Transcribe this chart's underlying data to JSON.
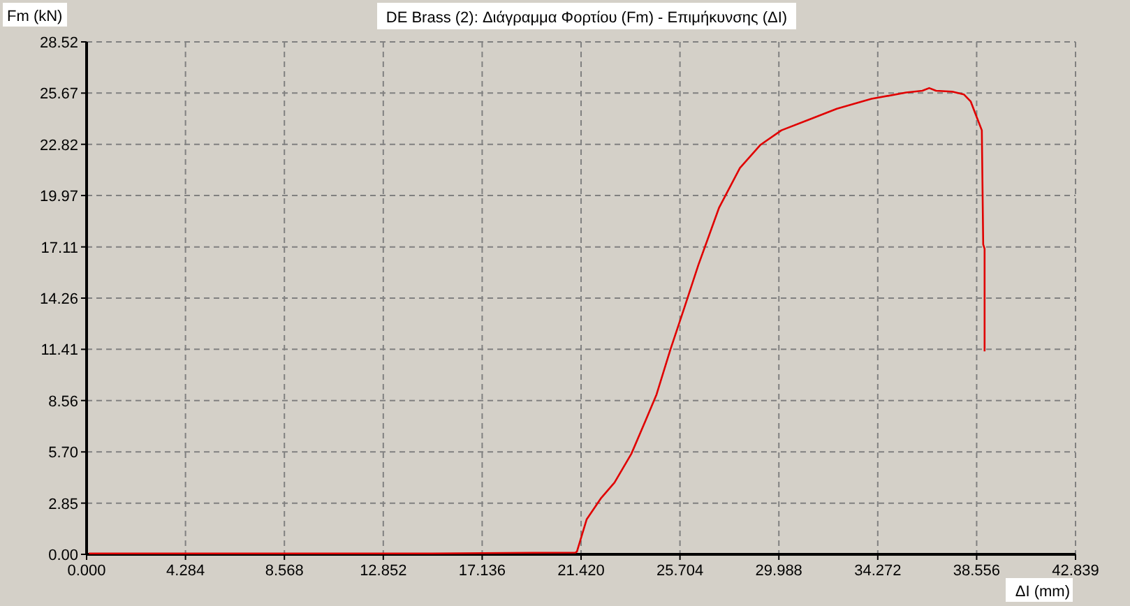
{
  "chart_data": {
    "type": "line",
    "title": "DE Brass (2): Διάγραμμα Φορτίου (Fm) - Επιμήκυνσης (ΔΙ)",
    "xlabel": "ΔI (mm)",
    "ylabel": "Fm (kN)",
    "xlim": [
      0,
      42.839
    ],
    "ylim": [
      0,
      28.52
    ],
    "xticks": [
      {
        "value": 0,
        "label": "0.000"
      },
      4.284,
      8.568,
      12.852,
      17.136,
      {
        "value": 21.42,
        "label": "21.420"
      },
      25.704,
      29.988,
      34.272,
      38.556,
      42.839
    ],
    "yticks": [
      {
        "value": 0,
        "label": "0.00"
      },
      2.85,
      {
        "value": 5.7,
        "label": "5.70"
      },
      8.56,
      11.41,
      14.26,
      17.11,
      19.97,
      22.82,
      25.67,
      28.52
    ],
    "grid": true,
    "line_style": "solid",
    "marker": "none",
    "series": [
      {
        "color": "#e00000",
        "x": [
          0.1,
          5,
          10,
          15,
          21.18,
          21.24,
          21.66,
          22.27,
          22.87,
          23.6,
          24.2,
          24.69,
          25.29,
          25.9,
          26.5,
          27.4,
          28.3,
          29.2,
          30.1,
          31.3,
          32.5,
          34,
          35.5,
          36.2,
          36.5,
          36.8,
          37.5,
          38,
          38.3,
          38.6,
          38.78,
          38.84,
          38.9,
          38.9
        ],
        "values": [
          0.05,
          0.05,
          0.05,
          0.05,
          0.1,
          0.15,
          1.94,
          3.1,
          4.0,
          5.6,
          7.4,
          8.9,
          11.4,
          13.75,
          16.1,
          19.3,
          21.5,
          22.8,
          23.6,
          24.2,
          24.8,
          25.35,
          25.7,
          25.8,
          25.95,
          25.8,
          25.75,
          25.6,
          25.2,
          24.2,
          23.6,
          17.25,
          17.0,
          11.3
        ]
      }
    ]
  }
}
